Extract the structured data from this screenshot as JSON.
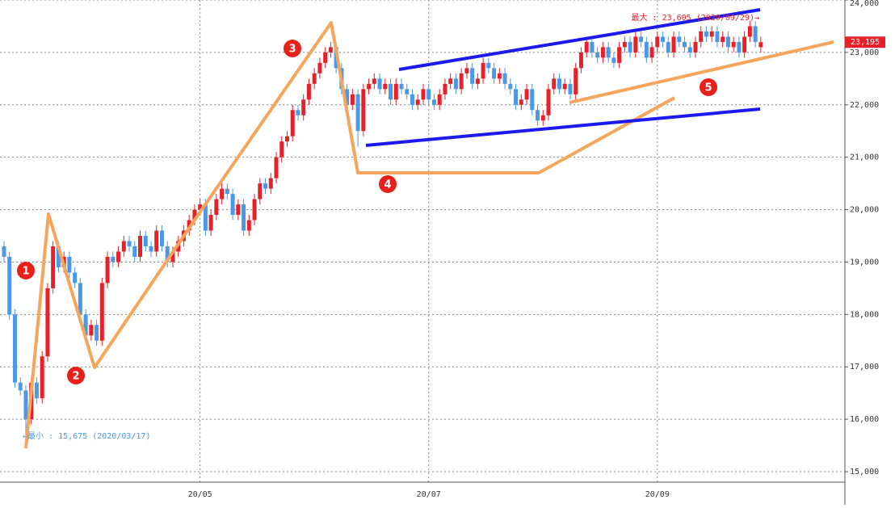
{
  "chart_data": {
    "type": "candlestick",
    "categories": [
      null,
      null,
      null,
      null,
      null,
      null,
      null,
      null,
      null,
      null,
      null,
      null,
      null,
      null,
      null,
      null,
      null,
      null,
      null,
      null,
      null,
      null,
      null,
      null,
      null,
      null,
      null,
      null,
      null,
      null,
      null,
      null,
      null,
      null,
      null,
      null,
      "20/05",
      null,
      null,
      null,
      null,
      null,
      null,
      null,
      null,
      null,
      null,
      null,
      null,
      null,
      null,
      null,
      null,
      null,
      null,
      null,
      null,
      null,
      null,
      null,
      null,
      null,
      null,
      null,
      null,
      null,
      null,
      null,
      null,
      null,
      null,
      null,
      null,
      null,
      null,
      null,
      null,
      null,
      "20/07",
      null,
      null,
      null,
      null,
      null,
      null,
      null,
      null,
      null,
      null,
      null,
      null,
      null,
      null,
      null,
      null,
      null,
      null,
      null,
      null,
      null,
      null,
      null,
      null,
      null,
      null,
      null,
      null,
      null,
      null,
      null,
      null,
      null,
      null,
      null,
      null,
      null,
      null,
      null,
      null,
      null,
      "20/09",
      null,
      null,
      null,
      null,
      null,
      null,
      null,
      null,
      null,
      null,
      null,
      null,
      null,
      null,
      null,
      null,
      null,
      null,
      null
    ],
    "open": [
      19300,
      19100,
      18000,
      16700,
      16550,
      16000,
      16700,
      16400,
      17200,
      18500,
      19300,
      18900,
      19100,
      18800,
      18600,
      18000,
      17600,
      17800,
      17500,
      18600,
      19100,
      19000,
      19200,
      19400,
      19300,
      19100,
      19500,
      19300,
      19200,
      19600,
      19300,
      19000,
      19200,
      19400,
      19600,
      19800,
      20000,
      20100,
      19600,
      19900,
      20200,
      20400,
      20300,
      19900,
      20100,
      19600,
      19800,
      20200,
      20500,
      20400,
      20600,
      21000,
      21300,
      21400,
      21900,
      21800,
      22100,
      22400,
      22600,
      22800,
      23000,
      23100,
      22700,
      22300,
      22000,
      22200,
      21500,
      22300,
      22400,
      22500,
      22300,
      22400,
      22100,
      22400,
      22300,
      22200,
      22000,
      22100,
      22300,
      22100,
      22000,
      22200,
      22400,
      22500,
      22300,
      22600,
      22700,
      22400,
      22500,
      22800,
      22700,
      22500,
      22600,
      22400,
      22300,
      22000,
      22100,
      22300,
      21900,
      21700,
      21800,
      22300,
      22500,
      22300,
      22400,
      22200,
      22700,
      23000,
      23200,
      23000,
      22900,
      23100,
      22900,
      22800,
      23100,
      23200,
      23000,
      23300,
      23200,
      22900,
      23100,
      23300,
      23200,
      23000,
      23300,
      23200,
      23100,
      23000,
      23200,
      23400,
      23300,
      23400,
      23200,
      23300,
      23100,
      23200,
      23000,
      23300,
      23500,
      23100
    ],
    "high": [
      19400,
      19200,
      18100,
      16800,
      16650,
      16800,
      16800,
      17300,
      18600,
      19400,
      19400,
      19200,
      19200,
      18900,
      18700,
      18100,
      17900,
      17900,
      18700,
      19200,
      19200,
      19300,
      19500,
      19500,
      19400,
      19600,
      19600,
      19400,
      19700,
      19700,
      19400,
      19300,
      19500,
      19700,
      19900,
      20100,
      20200,
      20200,
      20000,
      20300,
      20500,
      20500,
      20400,
      20200,
      20200,
      19900,
      20300,
      20600,
      20600,
      20700,
      21100,
      21400,
      21500,
      22000,
      22000,
      22200,
      22500,
      22700,
      22900,
      23100,
      23200,
      23200,
      22800,
      22400,
      22300,
      22300,
      22400,
      22500,
      22600,
      22600,
      22500,
      22500,
      22500,
      22500,
      22400,
      22300,
      22200,
      22400,
      22400,
      22200,
      22300,
      22500,
      22600,
      22600,
      22700,
      22800,
      22800,
      22600,
      22900,
      22900,
      22800,
      22700,
      22700,
      22500,
      22400,
      22200,
      22400,
      22400,
      22000,
      21900,
      22400,
      22600,
      22600,
      22500,
      22500,
      22800,
      23100,
      23300,
      23300,
      23100,
      23200,
      23200,
      23000,
      23200,
      23300,
      23300,
      23400,
      23400,
      23300,
      23200,
      23400,
      23400,
      23300,
      23400,
      23400,
      23300,
      23200,
      23300,
      23500,
      23500,
      23500,
      23500,
      23400,
      23400,
      23300,
      23300,
      23400,
      23605,
      23600,
      23300
    ],
    "low": [
      19000,
      17900,
      16600,
      16450,
      15675,
      15900,
      16300,
      16300,
      17100,
      18400,
      18800,
      18800,
      18700,
      18500,
      17900,
      17500,
      17500,
      17400,
      17400,
      18500,
      18900,
      18900,
      19100,
      19200,
      19000,
      19000,
      19200,
      19100,
      19100,
      19200,
      18900,
      18900,
      19100,
      19300,
      19500,
      19700,
      19900,
      19500,
      19500,
      19800,
      20100,
      20200,
      19800,
      19800,
      19500,
      19500,
      19700,
      20100,
      20300,
      20300,
      20500,
      20900,
      21200,
      21300,
      21700,
      21700,
      22000,
      22300,
      22500,
      22700,
      22900,
      22600,
      22200,
      21900,
      21900,
      21200,
      21400,
      22200,
      22300,
      22200,
      22200,
      22000,
      22000,
      22200,
      22100,
      21900,
      21900,
      22000,
      22000,
      21900,
      21900,
      22100,
      22300,
      22200,
      22200,
      22500,
      22300,
      22300,
      22400,
      22600,
      22400,
      22400,
      22300,
      22200,
      21900,
      21900,
      22000,
      21800,
      21600,
      21600,
      21700,
      22200,
      22200,
      22200,
      22100,
      22100,
      22600,
      22900,
      22900,
      22800,
      22800,
      22800,
      22700,
      22700,
      23000,
      22900,
      22900,
      23100,
      22800,
      22800,
      23000,
      23100,
      22900,
      22900,
      23100,
      23000,
      22900,
      22900,
      23100,
      23200,
      23200,
      23100,
      23100,
      23000,
      23000,
      22900,
      22900,
      23200,
      23100,
      23000
    ],
    "close": [
      19100,
      18000,
      16700,
      16550,
      16000,
      16700,
      16400,
      17200,
      18500,
      19300,
      18900,
      19100,
      18800,
      18600,
      18000,
      17600,
      17800,
      17500,
      18600,
      19100,
      19000,
      19200,
      19400,
      19300,
      19100,
      19500,
      19300,
      19200,
      19600,
      19300,
      19000,
      19200,
      19400,
      19600,
      19800,
      20000,
      20100,
      19600,
      19900,
      20200,
      20400,
      20300,
      19900,
      20100,
      19600,
      19800,
      20200,
      20500,
      20400,
      20600,
      21000,
      21300,
      21400,
      21900,
      21800,
      22100,
      22400,
      22600,
      22800,
      23000,
      23100,
      22700,
      22300,
      22000,
      22200,
      21500,
      22300,
      22400,
      22500,
      22300,
      22400,
      22100,
      22400,
      22300,
      22200,
      22000,
      22100,
      22300,
      22100,
      22000,
      22200,
      22400,
      22500,
      22300,
      22600,
      22700,
      22400,
      22500,
      22800,
      22700,
      22500,
      22600,
      22400,
      22300,
      22000,
      22100,
      22300,
      21900,
      21700,
      21800,
      22300,
      22500,
      22300,
      22400,
      22200,
      22700,
      23000,
      23200,
      23000,
      22900,
      23100,
      22900,
      22800,
      23100,
      23200,
      23000,
      23300,
      23200,
      22900,
      23100,
      23300,
      23200,
      23000,
      23300,
      23200,
      23100,
      23000,
      23200,
      23400,
      23300,
      23400,
      23200,
      23300,
      23100,
      23200,
      23000,
      23300,
      23500,
      23200,
      23195
    ],
    "up_color": "#e8202a",
    "down_color": "#4a98e8",
    "ylim": [
      14800,
      24000
    ],
    "yticks": [
      {
        "value": 15000,
        "label": "15,000"
      },
      {
        "value": 16000,
        "label": "16,000"
      },
      {
        "value": 17000,
        "label": "17,000"
      },
      {
        "value": 18000,
        "label": "18,000"
      },
      {
        "value": 19000,
        "label": "19,000"
      },
      {
        "value": 20000,
        "label": "20,000"
      },
      {
        "value": 21000,
        "label": "21,000"
      },
      {
        "value": 22000,
        "label": "22,000"
      },
      {
        "value": 23000,
        "label": "23,000"
      },
      {
        "value": 24000,
        "label": "24,000"
      }
    ],
    "grid": true,
    "current_price": {
      "value": 23195,
      "label": "23,195"
    },
    "annotations": [
      "←最小 : 15,675 (2020/03/17)",
      "最大 : 23,605 (2020/09/29)→"
    ],
    "markers": [
      "1",
      "2",
      "3",
      "4",
      "5"
    ]
  }
}
